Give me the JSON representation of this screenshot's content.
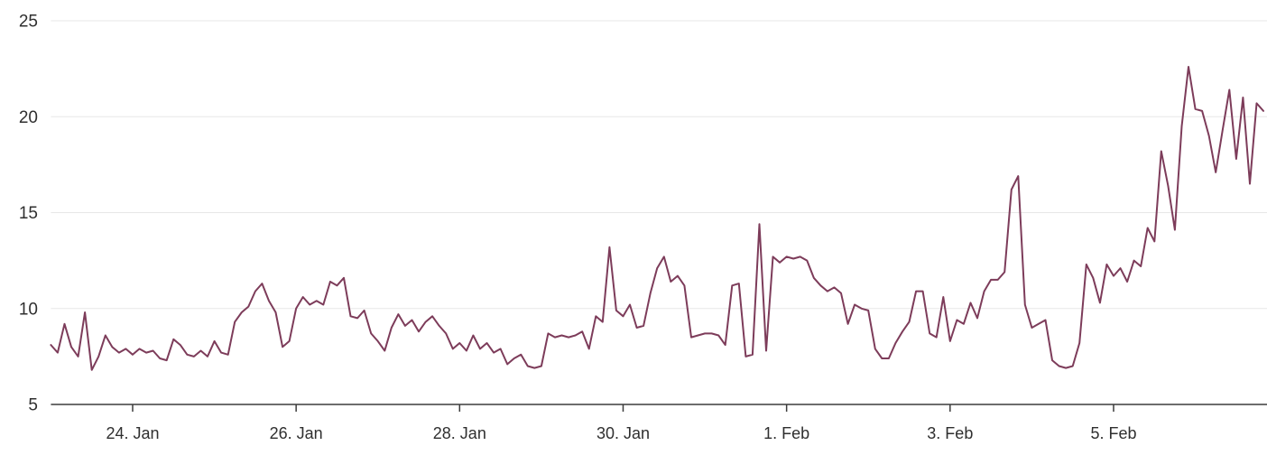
{
  "chart": {
    "title": "",
    "colors": {
      "series": "#7d3c5a",
      "grid": "#e7e7e7",
      "axis_line": "#3c3c3c",
      "tick_mark": "#3c3c3c",
      "label": "#2f2f2f",
      "background": "#ffffff"
    },
    "y_axis_labels": [
      "5",
      "10",
      "15",
      "20",
      "25"
    ],
    "x_axis_labels": [
      "24. Jan",
      "26. Jan",
      "28. Jan",
      "30. Jan",
      "1. Feb",
      "3. Feb",
      "5. Feb"
    ]
  },
  "chart_data": {
    "type": "line",
    "title": "",
    "xlabel": "",
    "ylabel": "",
    "legend": "none",
    "grid": "horizontal",
    "ylim": [
      5,
      25
    ],
    "y_ticks": [
      5,
      10,
      15,
      20,
      25
    ],
    "x_start": "23. Jan 00:00",
    "x_end": "6. Feb 20:00",
    "step_hours": 2,
    "x_tick_labels": [
      "24. Jan",
      "26. Jan",
      "28. Jan",
      "30. Jan",
      "1. Feb",
      "3. Feb",
      "5. Feb"
    ],
    "x_tick_offsets_days": [
      1,
      3,
      5,
      7,
      9,
      11,
      13
    ],
    "series": [
      {
        "name": "value",
        "values": [
          8.1,
          7.7,
          9.2,
          8.0,
          7.5,
          9.8,
          6.8,
          7.5,
          8.6,
          8.0,
          7.7,
          7.9,
          7.6,
          7.9,
          7.7,
          7.8,
          7.4,
          7.3,
          8.4,
          8.1,
          7.6,
          7.5,
          7.8,
          7.5,
          8.3,
          7.7,
          7.6,
          9.3,
          9.8,
          10.1,
          10.9,
          11.3,
          10.4,
          9.8,
          8.0,
          8.3,
          10.0,
          10.6,
          10.2,
          10.4,
          10.2,
          11.4,
          11.2,
          11.6,
          9.6,
          9.5,
          9.9,
          8.7,
          8.3,
          7.8,
          9.0,
          9.7,
          9.1,
          9.4,
          8.8,
          9.3,
          9.6,
          9.1,
          8.7,
          7.9,
          8.2,
          7.8,
          8.6,
          7.9,
          8.2,
          7.7,
          7.9,
          7.1,
          7.4,
          7.6,
          7.0,
          6.9,
          7.0,
          8.7,
          8.5,
          8.6,
          8.5,
          8.6,
          8.8,
          7.9,
          9.6,
          9.3,
          13.2,
          9.9,
          9.6,
          10.2,
          9.0,
          9.1,
          10.8,
          12.1,
          12.7,
          11.4,
          11.7,
          11.2,
          8.5,
          8.6,
          8.7,
          8.7,
          8.6,
          8.1,
          11.2,
          11.3,
          7.5,
          7.6,
          14.4,
          7.8,
          12.7,
          12.4,
          12.7,
          12.6,
          12.7,
          12.5,
          11.6,
          11.2,
          10.9,
          11.1,
          10.8,
          9.2,
          10.2,
          10.0,
          9.9,
          7.9,
          7.4,
          7.4,
          8.2,
          8.8,
          9.3,
          10.9,
          10.9,
          8.7,
          8.5,
          10.6,
          8.3,
          9.4,
          9.2,
          10.3,
          9.5,
          10.9,
          11.5,
          11.5,
          11.9,
          16.2,
          16.9,
          10.2,
          9.0,
          9.2,
          9.4,
          7.3,
          7.0,
          6.9,
          7.0,
          8.2,
          12.3,
          11.6,
          10.3,
          12.3,
          11.7,
          12.1,
          11.4,
          12.5,
          12.2,
          14.2,
          13.5,
          18.2,
          16.4,
          14.1,
          19.5,
          22.6,
          20.4,
          20.3,
          19.0,
          17.1,
          19.3,
          21.4,
          17.8,
          21.0,
          16.5,
          20.7,
          20.3
        ]
      }
    ]
  }
}
